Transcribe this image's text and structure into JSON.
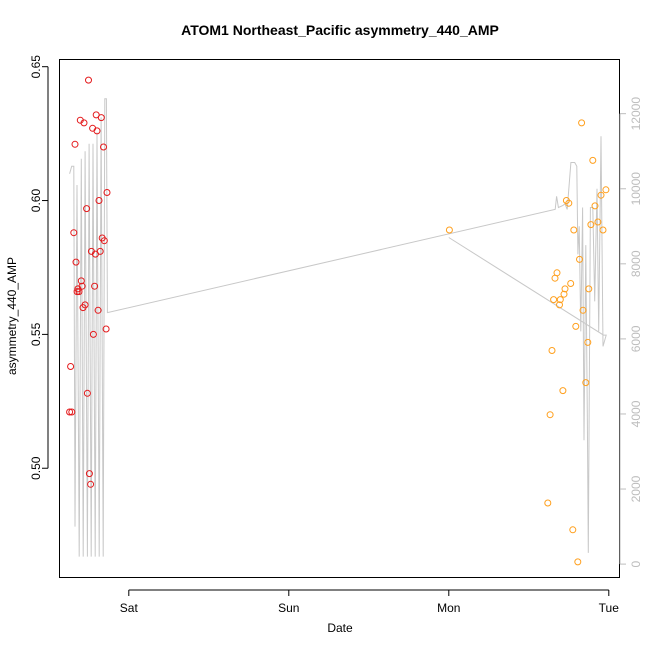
{
  "chart_data": {
    "type": "scatter",
    "title": "ATOM1 Northeast_Pacific asymmetry_440_AMP",
    "xlabel": "Date",
    "ylabel": "asymmetry_440_AMP",
    "x_ticks": [
      "Sat",
      "Sun",
      "Mon",
      "Tue"
    ],
    "x_tick_days": [
      1,
      2,
      3,
      4
    ],
    "xlim": [
      0.57,
      4.07
    ],
    "ylim": [
      0.459,
      0.6525
    ],
    "y_ticks": [
      0.5,
      0.55,
      0.6,
      0.65
    ],
    "y_tick_labels": [
      "0.50",
      "0.55",
      "0.60",
      "0.65"
    ],
    "y2lim": [
      -370,
      13430
    ],
    "y2_ticks": [
      0,
      2000,
      4000,
      6000,
      8000,
      10000,
      12000
    ],
    "y2_tick_labels": [
      "0",
      "2000",
      "4000",
      "6000",
      "8000",
      "10000",
      "12000"
    ],
    "grid": false,
    "colors": {
      "series_red": "#e41a1c",
      "series_orange": "#ff9f1c",
      "line_gray": "#c8c8c8",
      "axis_right": "#bdbdbd"
    },
    "series": [
      {
        "color": "#e41a1c",
        "points": [
          [
            0.63,
            0.521
          ],
          [
            0.644,
            0.521
          ],
          [
            0.636,
            0.538
          ],
          [
            0.656,
            0.588
          ],
          [
            0.664,
            0.621
          ],
          [
            0.67,
            0.577
          ],
          [
            0.677,
            0.566
          ],
          [
            0.682,
            0.567
          ],
          [
            0.689,
            0.566
          ],
          [
            0.697,
            0.63
          ],
          [
            0.703,
            0.57
          ],
          [
            0.708,
            0.568
          ],
          [
            0.714,
            0.56
          ],
          [
            0.72,
            0.629
          ],
          [
            0.727,
            0.561
          ],
          [
            0.736,
            0.597
          ],
          [
            0.741,
            0.528
          ],
          [
            0.748,
            0.645
          ],
          [
            0.754,
            0.498
          ],
          [
            0.761,
            0.494
          ],
          [
            0.766,
            0.581
          ],
          [
            0.774,
            0.627
          ],
          [
            0.779,
            0.55
          ],
          [
            0.786,
            0.568
          ],
          [
            0.791,
            0.58
          ],
          [
            0.796,
            0.632
          ],
          [
            0.801,
            0.626
          ],
          [
            0.808,
            0.559
          ],
          [
            0.814,
            0.6
          ],
          [
            0.821,
            0.581
          ],
          [
            0.828,
            0.631
          ],
          [
            0.834,
            0.586
          ],
          [
            0.842,
            0.62
          ],
          [
            0.847,
            0.585
          ],
          [
            0.858,
            0.552
          ],
          [
            0.864,
            0.603
          ]
        ]
      },
      {
        "color": "#ff9f1c",
        "points": [
          [
            3.004,
            0.589
          ],
          [
            3.619,
            0.487
          ],
          [
            3.633,
            0.52
          ],
          [
            3.645,
            0.544
          ],
          [
            3.655,
            0.563
          ],
          [
            3.664,
            0.571
          ],
          [
            3.676,
            0.573
          ],
          [
            3.692,
            0.561
          ],
          [
            3.697,
            0.563
          ],
          [
            3.713,
            0.529
          ],
          [
            3.72,
            0.565
          ],
          [
            3.726,
            0.567
          ],
          [
            3.735,
            0.6
          ],
          [
            3.75,
            0.599
          ],
          [
            3.762,
            0.569
          ],
          [
            3.775,
            0.477
          ],
          [
            3.781,
            0.589
          ],
          [
            3.794,
            0.553
          ],
          [
            3.806,
            0.465
          ],
          [
            3.817,
            0.578
          ],
          [
            3.83,
            0.629
          ],
          [
            3.839,
            0.559
          ],
          [
            3.856,
            0.532
          ],
          [
            3.869,
            0.547
          ],
          [
            3.875,
            0.567
          ],
          [
            3.888,
            0.591
          ],
          [
            3.9,
            0.615
          ],
          [
            3.914,
            0.598
          ],
          [
            3.932,
            0.592
          ],
          [
            3.951,
            0.602
          ],
          [
            3.964,
            0.589
          ],
          [
            3.982,
            0.604
          ]
        ]
      }
    ],
    "line_y2": [
      [
        0.63,
        10400
      ],
      [
        0.643,
        10600
      ],
      [
        0.656,
        10600
      ],
      [
        0.664,
        1000
      ],
      [
        0.676,
        10100
      ],
      [
        0.69,
        200
      ],
      [
        0.703,
        10800
      ],
      [
        0.715,
        200
      ],
      [
        0.727,
        11000
      ],
      [
        0.741,
        200
      ],
      [
        0.752,
        11200
      ],
      [
        0.765,
        200
      ],
      [
        0.776,
        11200
      ],
      [
        0.79,
        200
      ],
      [
        0.801,
        11500
      ],
      [
        0.815,
        200
      ],
      [
        0.827,
        11900
      ],
      [
        0.84,
        200
      ],
      [
        0.85,
        12400
      ],
      [
        0.86,
        12400
      ],
      [
        0.866,
        6700
      ],
      [
        3.665,
        9450
      ],
      [
        3.674,
        9800
      ],
      [
        3.685,
        9500
      ],
      [
        3.712,
        9550
      ],
      [
        3.726,
        9600
      ],
      [
        3.74,
        9450
      ],
      [
        3.763,
        10700
      ],
      [
        3.787,
        10700
      ],
      [
        3.8,
        10600
      ],
      [
        3.807,
        8250
      ],
      [
        3.815,
        9000
      ],
      [
        3.825,
        6200
      ],
      [
        3.836,
        9500
      ],
      [
        3.845,
        3300
      ],
      [
        3.856,
        8500
      ],
      [
        3.866,
        3700
      ],
      [
        3.872,
        300
      ],
      [
        3.885,
        9500
      ],
      [
        3.9,
        9500
      ],
      [
        3.912,
        7000
      ],
      [
        3.926,
        10000
      ],
      [
        3.937,
        6200
      ],
      [
        3.951,
        11400
      ],
      [
        3.964,
        5800
      ],
      [
        3.984,
        6100
      ],
      [
        3.967,
        6100
      ],
      [
        3.0,
        8700
      ]
    ]
  }
}
